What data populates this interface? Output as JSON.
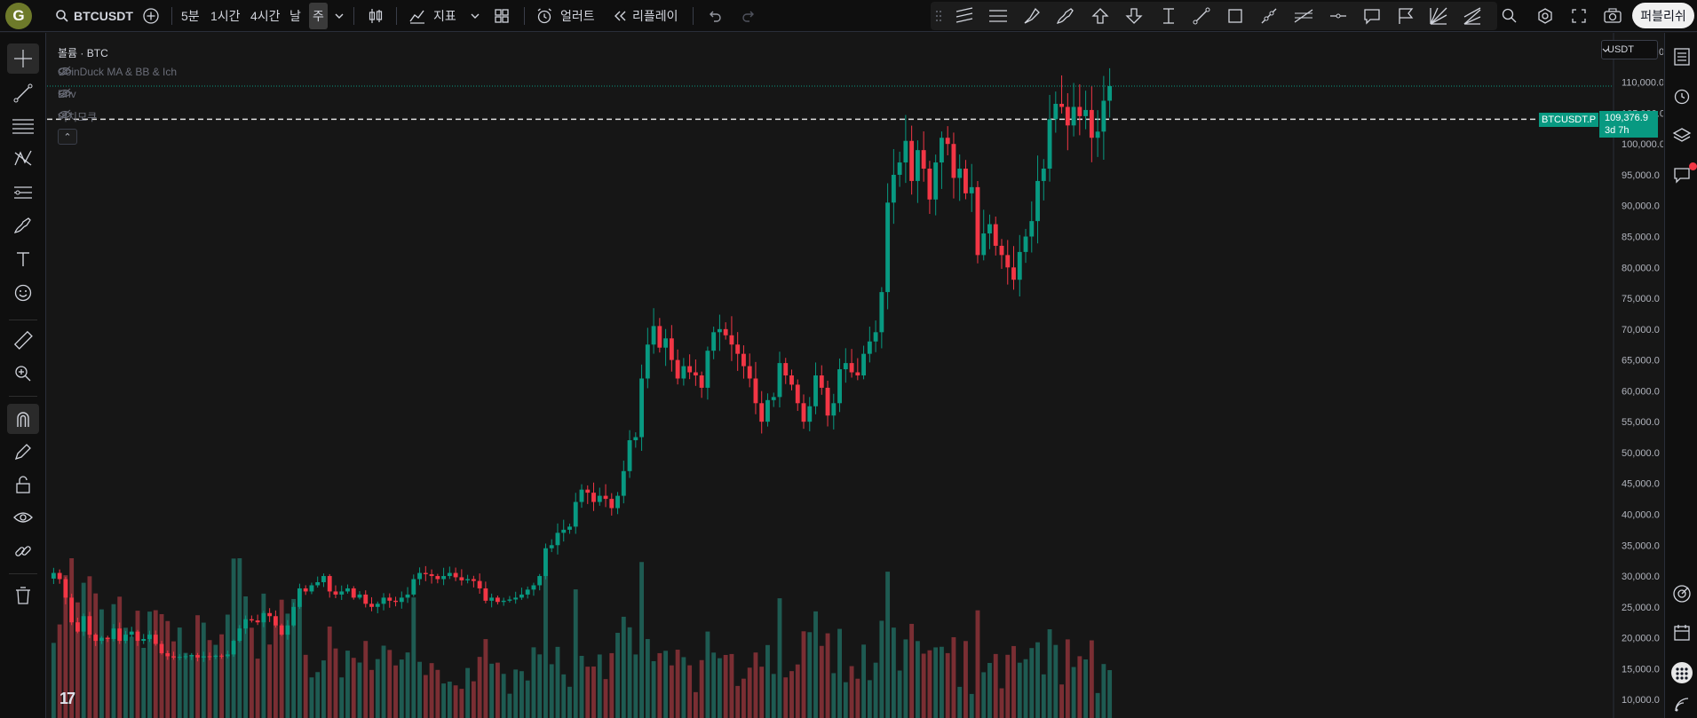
{
  "topbar": {
    "avatar_letter": "G",
    "symbol": "BTCUSDT",
    "timeframes": [
      "5분",
      "1시간",
      "4시간",
      "날",
      "주"
    ],
    "active_timeframe": "주",
    "indicators_label": "지표",
    "alert_label": "얼러트",
    "replay_label": "리플레이",
    "publish_label": "퍼블리쉬"
  },
  "legend": {
    "title": "볼륨 · BTC",
    "indicators": [
      "CoinDuck MA & BB & Ich",
      "Env",
      "이치모쿠"
    ],
    "collapse_glyph": "⌃"
  },
  "price_scale": {
    "currency": "USDT",
    "ticker_tag": "BTCUSDT.P",
    "last_price": "109,376.9",
    "countdown": "3d 7h"
  },
  "colors": {
    "up": "#089981",
    "down": "#f23645",
    "up_volume": "#1e5b52",
    "down_volume": "#7a2e33",
    "background": "#161616"
  },
  "chart_data": {
    "type": "candlestick",
    "symbol": "BTCUSDT.P",
    "interval": "1W",
    "y_axis_ticks": [
      115000,
      110000,
      105000,
      100000,
      95000,
      90000,
      85000,
      80000,
      75000,
      70000,
      65000,
      60000,
      55000,
      50000,
      45000,
      40000,
      35000,
      30000,
      25000,
      20000,
      15000,
      10000
    ],
    "ylim": [
      7000,
      118000
    ],
    "last_price": 109376.9,
    "dashed_level": 104000,
    "closes": [
      30500,
      29500,
      26500,
      22500,
      21000,
      23500,
      20500,
      19500,
      20000,
      19800,
      21500,
      19500,
      20500,
      21000,
      19500,
      19800,
      20500,
      19000,
      17500,
      17000,
      16800,
      16900,
      17000,
      17200,
      16800,
      17000,
      16900,
      17100,
      17000,
      17300,
      19500,
      21500,
      23000,
      22800,
      22500,
      24000,
      23500,
      22000,
      20500,
      22000,
      25000,
      28000,
      27500,
      28500,
      29000,
      30000,
      27500,
      27000,
      27500,
      28000,
      26500,
      27000,
      25500,
      25000,
      25500,
      26500,
      26000,
      25800,
      26500,
      27000,
      29500,
      30500,
      30300,
      30000,
      29500,
      30000,
      30500,
      29800,
      29300,
      29500,
      29200,
      28000,
      26000,
      26500,
      25800,
      26000,
      26200,
      26500,
      27000,
      27800,
      28500,
      30000,
      34500,
      35000,
      37000,
      37500,
      38000,
      42000,
      44000,
      43500,
      42000,
      43000,
      42500,
      41000,
      43000,
      47000,
      52000,
      52500,
      62000,
      67500,
      70500,
      67000,
      68500,
      65000,
      62000,
      64000,
      63000,
      62500,
      60500,
      66500,
      69500,
      70000,
      69000,
      67500,
      66000,
      64000,
      62000,
      58000,
      55000,
      58500,
      59000,
      64500,
      62500,
      61000,
      58000,
      55000,
      57500,
      62500,
      60500,
      56000,
      58000,
      63500,
      64500,
      63000,
      62500,
      66000,
      68000,
      69500,
      76000,
      90500,
      95000,
      97000,
      100500,
      94000,
      99000,
      96000,
      91000,
      97000,
      101000,
      100000,
      94500,
      96000,
      92000,
      93000,
      82000,
      85500,
      87000,
      83500,
      82000,
      80000,
      78000,
      82500,
      85000,
      87500,
      94000,
      96000,
      104000,
      106500,
      106000,
      103000,
      106000,
      104500,
      105500,
      101000,
      102000,
      107000,
      109376.9
    ],
    "volume_scale_top": 36000
  }
}
